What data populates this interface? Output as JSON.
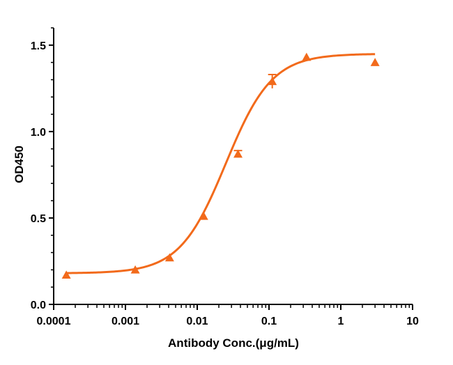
{
  "chart_data": {
    "type": "scatter",
    "title": "",
    "xlabel": "Antibody Conc.(μg/mL)",
    "ylabel": "OD450",
    "x_scale": "log",
    "xlim": [
      0.0001,
      10
    ],
    "ylim": [
      0,
      1.6
    ],
    "x_tick_labels": [
      "0.0001",
      "0.001",
      "0.01",
      "0.1",
      "1",
      "10"
    ],
    "y_tick_labels": [
      "0.0",
      "0.5",
      "1.0",
      "1.5"
    ],
    "grid": false,
    "legend": "none",
    "colors": {
      "series": "#f26a1b",
      "axis": "#000000"
    },
    "series": [
      {
        "marker": "triangle",
        "points": [
          {
            "x": 0.00015,
            "y": 0.17
          },
          {
            "x": 0.00137,
            "y": 0.2
          },
          {
            "x": 0.00412,
            "y": 0.27
          },
          {
            "x": 0.0123,
            "y": 0.51
          },
          {
            "x": 0.037,
            "y": 0.87,
            "err": 0.02
          },
          {
            "x": 0.111,
            "y": 1.29,
            "err": 0.04
          },
          {
            "x": 0.333,
            "y": 1.43
          },
          {
            "x": 3.0,
            "y": 1.4
          }
        ],
        "fit": {
          "model": "4PL",
          "bottom": 0.18,
          "top": 1.45,
          "ec50": 0.025,
          "hill": 1.35
        }
      }
    ]
  }
}
